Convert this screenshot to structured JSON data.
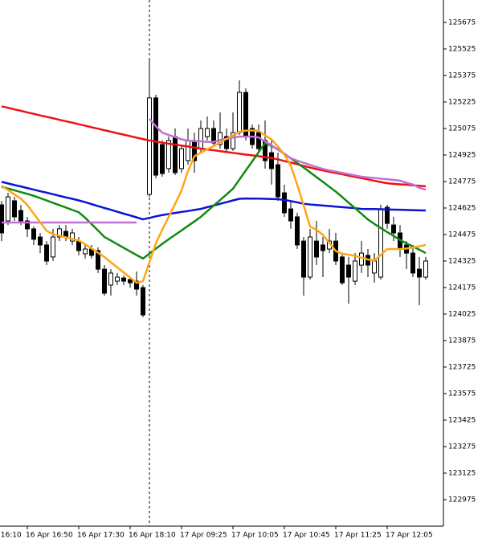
{
  "chart_data": {
    "type": "candlestick",
    "categories": [
      "16 Apr 16:10",
      null,
      null,
      null,
      null,
      null,
      null,
      null,
      "16 Apr 16:50",
      null,
      null,
      null,
      null,
      null,
      null,
      null,
      "16 Apr 17:30",
      null,
      null,
      null,
      null,
      null,
      null,
      null,
      "16 Apr 18:10",
      null,
      null,
      null,
      null,
      null,
      null,
      null,
      "17 Apr 09:25",
      null,
      null,
      null,
      null,
      null,
      null,
      null,
      "17 Apr 10:05",
      null,
      null,
      null,
      null,
      null,
      null,
      null,
      "17 Apr 10:45",
      null,
      null,
      null,
      null,
      null,
      null,
      null,
      "17 Apr 11:25",
      null,
      null,
      null,
      null,
      null,
      null,
      null,
      "17 Apr 12:05",
      null,
      null,
      null,
      null,
      null,
      null
    ],
    "open": [
      null,
      null,
      null,
      null,
      124643,
      124552,
      124666,
      124611,
      124552,
      124507,
      124461,
      124416,
      124348,
      124461,
      124493,
      124438,
      124438,
      124366,
      124393,
      124384,
      124279,
      124189,
      124211,
      124229,
      124220,
      124211,
      124175,
      124702,
      125248,
      124984,
      124848,
      125029,
      124848,
      124893,
      125007,
      124961,
      125029,
      125075,
      124984,
      125029,
      124961,
      125052,
      125279,
      125075,
      125052,
      125007,
      124938,
      124870,
      124711,
      124620,
      124575,
      124438,
      124234,
      124438,
      124416,
      124393,
      124438,
      124348,
      124302,
      124211,
      124302,
      124357,
      124257,
      124234,
      124629,
      124529,
      124484,
      124416,
      124370,
      124279,
      124234
    ],
    "high": [
      null,
      null,
      null,
      null,
      124666,
      124711,
      124688,
      124643,
      124575,
      124520,
      124484,
      124438,
      124507,
      124529,
      124529,
      124507,
      124461,
      124416,
      124416,
      124402,
      124302,
      124279,
      124257,
      124243,
      124234,
      124266,
      124189,
      125461,
      125266,
      125007,
      125029,
      125075,
      124984,
      125075,
      125052,
      125120,
      125143,
      125120,
      125166,
      125075,
      125166,
      125347,
      125302,
      125098,
      125098,
      125120,
      125007,
      124938,
      124757,
      124666,
      124598,
      124461,
      124507,
      124552,
      124461,
      124507,
      124484,
      124370,
      124348,
      124370,
      124438,
      124393,
      124370,
      124643,
      124643,
      124575,
      124529,
      124438,
      124416,
      124348,
      124348
    ],
    "low": [
      null,
      null,
      null,
      null,
      124438,
      124529,
      124552,
      124529,
      124461,
      124416,
      124370,
      124302,
      124325,
      124438,
      124438,
      124416,
      124357,
      124339,
      124339,
      124257,
      124129,
      124129,
      124189,
      124189,
      124175,
      124129,
      124007,
      124688,
      124793,
      124802,
      124825,
      124811,
      124825,
      124870,
      124825,
      124938,
      125007,
      124975,
      124961,
      124938,
      124948,
      125038,
      125007,
      124961,
      124938,
      124848,
      124757,
      124666,
      124575,
      124507,
      124393,
      124129,
      124220,
      124302,
      124234,
      124370,
      124302,
      124189,
      124084,
      124189,
      124257,
      124234,
      124202,
      124220,
      124507,
      124438,
      124348,
      124279,
      124234,
      124075,
      124220
    ],
    "close": [
      null,
      null,
      null,
      null,
      124484,
      124688,
      124575,
      124552,
      124507,
      124448,
      124416,
      124325,
      124461,
      124507,
      124461,
      124484,
      124384,
      124393,
      124357,
      124279,
      124143,
      124257,
      124234,
      124211,
      124202,
      124166,
      124020,
      125248,
      124811,
      124820,
      125007,
      124825,
      124961,
      125007,
      124893,
      125075,
      125075,
      124993,
      125052,
      124961,
      125052,
      125279,
      125029,
      124984,
      124961,
      124893,
      124848,
      124688,
      124598,
      124552,
      124416,
      124234,
      124461,
      124348,
      124384,
      124438,
      124325,
      124202,
      124234,
      124325,
      124370,
      124302,
      124325,
      124620,
      124538,
      124484,
      124393,
      124370,
      124257,
      124234,
      124325
    ],
    "bull_color": "#ffffff",
    "bear_color": "#000000",
    "series": [
      {
        "color": "#ee1111",
        "values": [
          null,
          null,
          null,
          null,
          125200,
          125192,
          125183,
          125175,
          125166,
          125158,
          125149,
          125141,
          125133,
          125124,
          125116,
          125108,
          125099,
          125091,
          125082,
          125074,
          125065,
          125057,
          125048,
          125040,
          125032,
          125023,
          125015,
          125007,
          125001,
          124995,
          124989,
          124984,
          124978,
          124973,
          124967,
          124961,
          124956,
          124952,
          124947,
          124942,
          124937,
          124932,
          124927,
          124923,
          124918,
          124913,
          124908,
          124900,
          124891,
          124882,
          124873,
          124863,
          124854,
          124845,
          124838,
          124830,
          124823,
          124816,
          124808,
          124801,
          124794,
          124787,
          124779,
          124772,
          124765,
          124762,
          124759,
          124757,
          124753,
          124751,
          124748
        ]
      },
      {
        "color": "#0a14d2",
        "values": [
          null,
          null,
          null,
          null,
          124773,
          124764,
          124755,
          124747,
          124738,
          124729,
          124720,
          124712,
          124703,
          124694,
          124685,
          124677,
          124668,
          124658,
          124647,
          124636,
          124625,
          124615,
          124604,
          124593,
          124583,
          124572,
          124561,
          124569,
          124578,
          124585,
          124591,
          124597,
          124603,
          124608,
          124614,
          124620,
          124630,
          124639,
          124649,
          124658,
          124668,
          124677,
          124679,
          124678,
          124678,
          124677,
          124676,
          124675,
          124671,
          124664,
          124657,
          124649,
          124645,
          124642,
          124639,
          124636,
          124633,
          124630,
          124627,
          124624,
          124620,
          124619,
          124619,
          124618,
          124617,
          124616,
          124615,
          124614,
          124613,
          124612,
          124611
        ]
      },
      {
        "color": "#118a11",
        "values": [
          null,
          null,
          null,
          null,
          124745,
          124735,
          124725,
          124715,
          124705,
          124694,
          124681,
          124668,
          124654,
          124641,
          124628,
          124614,
          124601,
          124570,
          124534,
          124498,
          124461,
          124441,
          124420,
          124400,
          124379,
          124359,
          124339,
          124367,
          124395,
          124422,
          124448,
          124473,
          124498,
          124524,
          124549,
          124575,
          124607,
          124639,
          124670,
          124702,
          124734,
          124786,
          124838,
          124889,
          124941,
          124993,
          124976,
          124958,
          124932,
          124906,
          124880,
          124854,
          124827,
          124800,
          124773,
          124745,
          124718,
          124687,
          124655,
          124624,
          124592,
          124560,
          124535,
          124512,
          124489,
          124467,
          124444,
          124425,
          124407,
          124389,
          124370
        ]
      },
      {
        "color": "#c36fd6",
        "values": [
          null,
          null,
          null,
          null,
          124543,
          124543,
          124543,
          124543,
          124543,
          124543,
          124543,
          124543,
          124543,
          124543,
          124543,
          124543,
          124543,
          124543,
          124543,
          124543,
          124543,
          124543,
          124543,
          124543,
          124543,
          124543,
          null,
          125129,
          125088,
          125051,
          125038,
          125026,
          125014,
          125006,
          125004,
          125002,
          124999,
          124999,
          125010,
          125017,
          125023,
          125029,
          125029,
          125029,
          125024,
          125002,
          124980,
          124955,
          124931,
          124907,
          124893,
          124881,
          124869,
          124857,
          124846,
          124838,
          124831,
          124824,
          124817,
          124809,
          124802,
          124798,
          124795,
          124791,
          124788,
          124784,
          124780,
          124768,
          124758,
          124739,
          124729
        ]
      },
      {
        "color": "#ffa516",
        "values": [
          null,
          null,
          null,
          null,
          124751,
          124726,
          124702,
          124678,
          124642,
          124593,
          124544,
          124496,
          124477,
          124468,
          124459,
          124450,
          124441,
          124420,
          124396,
          124372,
          124348,
          124318,
          124289,
          124260,
          124231,
          124202,
          124211,
          124318,
          124425,
          124502,
          124575,
          124648,
          124725,
          124834,
          124918,
          124938,
          124957,
          124976,
          124996,
          125016,
          125036,
          125056,
          125063,
          125064,
          125062,
          125036,
          125013,
          124973,
          124927,
          124866,
          124757,
          124641,
          124520,
          124502,
          124473,
          124427,
          124382,
          124366,
          124361,
          124354,
          124344,
          124334,
          124327,
          124359,
          124393,
          124393,
          124393,
          124396,
          124402,
          124408,
          124416
        ]
      }
    ],
    "ylim": [
      122825,
      125802
    ],
    "yticks": [
      122975,
      123125,
      123275,
      123425,
      123575,
      123725,
      123875,
      124025,
      124175,
      124325,
      124475,
      124625,
      124775,
      124925,
      125075,
      125225,
      125375,
      125525,
      125675
    ],
    "grid": false
  }
}
